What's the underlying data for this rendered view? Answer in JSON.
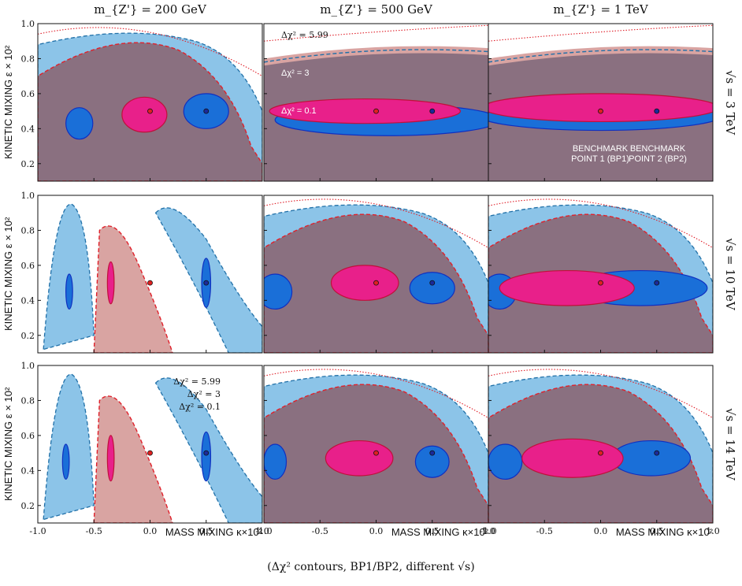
{
  "column_titles": [
    "m_{Z'} = 200 GeV",
    "m_{Z'} = 500 GeV",
    "m_{Z'} = 1 TeV"
  ],
  "row_titles": [
    "√s = 3 TeV",
    "√s = 10 TeV",
    "√s = 14 TeV"
  ],
  "ylabel": "KINETIC MIXING ε×10²",
  "xlabel": "MASS MIXING κ×10²",
  "caption": "(Δχ² contours, BP1/BP2, different √s)",
  "colors": {
    "bp1": "#e8208a",
    "bp2": "#1a6fd8",
    "overlap": "#8a7080",
    "light_blue": "#8cc4e8",
    "light_red": "#d9a4a2",
    "red_line": "#e0202a",
    "blue_line": "#2070a8"
  },
  "annotations": {
    "dchi_labels": [
      "Δχ² = 5.99",
      "Δχ² = 3",
      "Δχ² = 0.1"
    ],
    "bp1_label": [
      "BENCHMARK",
      "POINT 1 (BP1)"
    ],
    "bp2_label": [
      "BENCHMARK",
      "POINT 2 (BP2)"
    ]
  },
  "chart_data": {
    "type": "contour",
    "xlim": [
      -1.0,
      1.0
    ],
    "ylim": [
      0.1,
      1.0
    ],
    "xticks": [
      -1.0,
      -0.5,
      0.0,
      0.5,
      1.0
    ],
    "yticks": [
      0.2,
      0.4,
      0.6,
      0.8,
      1.0
    ],
    "benchmarks": [
      {
        "name": "BP1",
        "kappa": 0.0,
        "epsilon": 0.5
      },
      {
        "name": "BP2",
        "kappa": 0.5,
        "epsilon": 0.5
      }
    ],
    "panels": [
      {
        "row": 0,
        "col": 0,
        "layout": "broad",
        "bp1": {
          "cx": -0.05,
          "cy": 0.48,
          "rx": 0.2,
          "ry": 0.1
        },
        "bp2": {
          "cx": 0.5,
          "cy": 0.5,
          "rx": 0.2,
          "ry": 0.1
        },
        "bp2b": {
          "cx": -0.63,
          "cy": 0.43,
          "rx": 0.12,
          "ry": 0.09
        }
      },
      {
        "row": 0,
        "col": 1,
        "layout": "band",
        "bp1": {
          "cx": -0.1,
          "cy": 0.5,
          "rx": 0.85,
          "ry": 0.07
        },
        "bp2": {
          "cx": 0.1,
          "cy": 0.45,
          "rx": 1.0,
          "ry": 0.09
        }
      },
      {
        "row": 0,
        "col": 2,
        "layout": "band",
        "bp1": {
          "cx": 0.0,
          "cy": 0.52,
          "rx": 1.05,
          "ry": 0.08
        },
        "bp2": {
          "cx": 0.0,
          "cy": 0.48,
          "rx": 1.1,
          "ry": 0.09
        }
      },
      {
        "row": 1,
        "col": 0,
        "layout": "stripes",
        "bp1": {
          "cx": -0.35,
          "cy": 0.5,
          "rx": 0.03,
          "ry": 0.12
        },
        "bp2": {
          "cx": 0.5,
          "cy": 0.5,
          "rx": 0.04,
          "ry": 0.14
        },
        "bp2b": {
          "cx": -0.72,
          "cy": 0.45,
          "rx": 0.03,
          "ry": 0.1
        }
      },
      {
        "row": 1,
        "col": 1,
        "layout": "broad",
        "bp1": {
          "cx": -0.1,
          "cy": 0.5,
          "rx": 0.3,
          "ry": 0.1
        },
        "bp2": {
          "cx": 0.5,
          "cy": 0.47,
          "rx": 0.2,
          "ry": 0.09
        },
        "bp2b": {
          "cx": -0.9,
          "cy": 0.45,
          "rx": 0.15,
          "ry": 0.1
        }
      },
      {
        "row": 1,
        "col": 2,
        "layout": "broad",
        "bp1": {
          "cx": -0.3,
          "cy": 0.47,
          "rx": 0.6,
          "ry": 0.1
        },
        "bp2": {
          "cx": 0.35,
          "cy": 0.47,
          "rx": 0.6,
          "ry": 0.1
        },
        "bp2b": {
          "cx": -0.9,
          "cy": 0.45,
          "rx": 0.15,
          "ry": 0.1
        }
      },
      {
        "row": 2,
        "col": 0,
        "layout": "stripes",
        "bp1": {
          "cx": -0.35,
          "cy": 0.47,
          "rx": 0.03,
          "ry": 0.13
        },
        "bp2": {
          "cx": 0.5,
          "cy": 0.48,
          "rx": 0.04,
          "ry": 0.14
        },
        "bp2b": {
          "cx": -0.75,
          "cy": 0.45,
          "rx": 0.03,
          "ry": 0.1
        }
      },
      {
        "row": 2,
        "col": 1,
        "layout": "broad",
        "bp1": {
          "cx": -0.15,
          "cy": 0.47,
          "rx": 0.3,
          "ry": 0.1
        },
        "bp2": {
          "cx": 0.5,
          "cy": 0.45,
          "rx": 0.15,
          "ry": 0.09
        },
        "bp2b": {
          "cx": -0.9,
          "cy": 0.45,
          "rx": 0.1,
          "ry": 0.1
        }
      },
      {
        "row": 2,
        "col": 2,
        "layout": "broad",
        "bp1": {
          "cx": -0.25,
          "cy": 0.47,
          "rx": 0.45,
          "ry": 0.11
        },
        "bp2": {
          "cx": 0.45,
          "cy": 0.47,
          "rx": 0.35,
          "ry": 0.1
        },
        "bp2b": {
          "cx": -0.85,
          "cy": 0.45,
          "rx": 0.15,
          "ry": 0.1
        }
      }
    ]
  }
}
